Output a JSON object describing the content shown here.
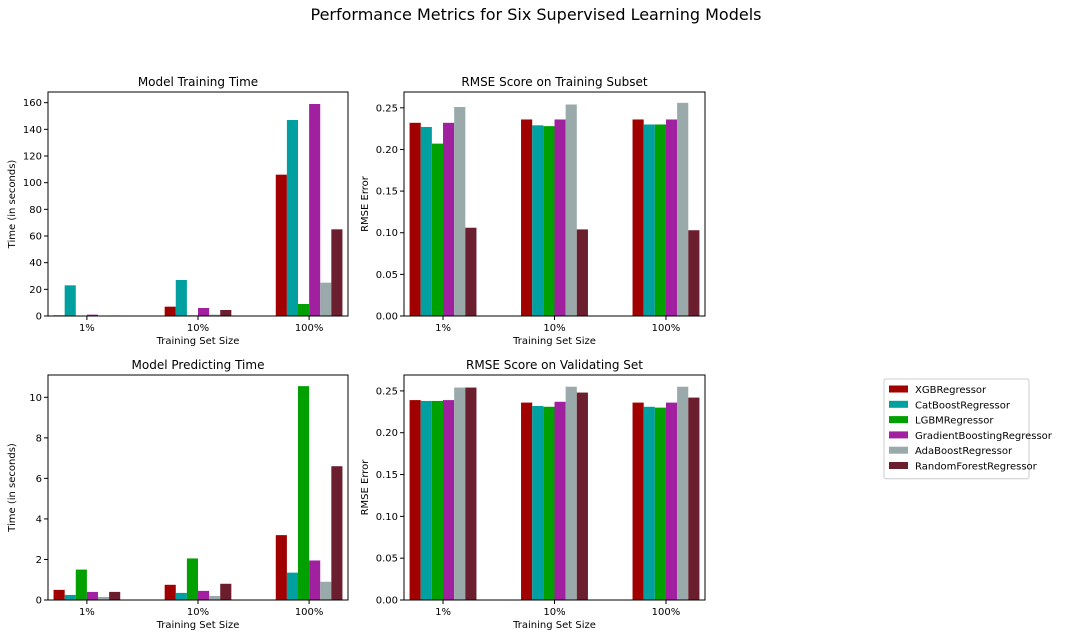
{
  "figure": {
    "title": "Performance Metrics for Six Supervised Learning Models"
  },
  "legend": {
    "placement": "right",
    "entries": [
      {
        "name": "XGBRegressor",
        "color": "#a00000"
      },
      {
        "name": "CatBoostRegressor",
        "color": "#00a0a0"
      },
      {
        "name": "LGBMRegressor",
        "color": "#00a000"
      },
      {
        "name": "GradientBoostingRegressor",
        "color": "#a020a0"
      },
      {
        "name": "AdaBoostRegressor",
        "color": "#9aa9a9"
      },
      {
        "name": "RandomForestRegressor",
        "color": "#6b1f2e"
      }
    ]
  },
  "chart_data": [
    {
      "type": "bar",
      "title": "Model Training Time",
      "xlabel": "Training Set Size",
      "ylabel": "Time (in seconds)",
      "categories": [
        "1%",
        "10%",
        "100%"
      ],
      "ylim": [
        0,
        168
      ],
      "yticks": [
        0,
        20,
        40,
        60,
        80,
        100,
        120,
        140,
        160
      ],
      "ytick_labels": [
        "0",
        "20",
        "40",
        "60",
        "80",
        "100",
        "120",
        "140",
        "160"
      ],
      "series": [
        {
          "name": "XGBRegressor",
          "values": [
            0.5,
            7,
            106
          ]
        },
        {
          "name": "CatBoostRegressor",
          "values": [
            23,
            27,
            147
          ]
        },
        {
          "name": "LGBMRegressor",
          "values": [
            0.2,
            0.5,
            9
          ]
        },
        {
          "name": "GradientBoostingRegressor",
          "values": [
            1,
            6,
            159
          ]
        },
        {
          "name": "AdaBoostRegressor",
          "values": [
            0.3,
            1,
            25
          ]
        },
        {
          "name": "RandomForestRegressor",
          "values": [
            0.4,
            4.5,
            65
          ]
        }
      ]
    },
    {
      "type": "bar",
      "title": "RMSE Score on Training Subset",
      "xlabel": "Training Set Size",
      "ylabel": "RMSE Error",
      "categories": [
        "1%",
        "10%",
        "100%"
      ],
      "ylim": [
        0,
        0.269
      ],
      "yticks": [
        0,
        0.05,
        0.1,
        0.15,
        0.2,
        0.25
      ],
      "ytick_labels": [
        "0.00",
        "0.05",
        "0.10",
        "0.15",
        "0.20",
        "0.25"
      ],
      "series": [
        {
          "name": "XGBRegressor",
          "values": [
            0.232,
            0.236,
            0.236
          ]
        },
        {
          "name": "CatBoostRegressor",
          "values": [
            0.227,
            0.229,
            0.23
          ]
        },
        {
          "name": "LGBMRegressor",
          "values": [
            0.207,
            0.228,
            0.23
          ]
        },
        {
          "name": "GradientBoostingRegressor",
          "values": [
            0.232,
            0.236,
            0.236
          ]
        },
        {
          "name": "AdaBoostRegressor",
          "values": [
            0.251,
            0.254,
            0.256
          ]
        },
        {
          "name": "RandomForestRegressor",
          "values": [
            0.106,
            0.104,
            0.103
          ]
        }
      ]
    },
    {
      "type": "bar",
      "title": "Model Predicting Time",
      "xlabel": "Training Set Size",
      "ylabel": "Time (in seconds)",
      "categories": [
        "1%",
        "10%",
        "100%"
      ],
      "ylim": [
        0,
        11.1
      ],
      "yticks": [
        0,
        2,
        4,
        6,
        8,
        10
      ],
      "ytick_labels": [
        "0",
        "2",
        "4",
        "6",
        "8",
        "10"
      ],
      "series": [
        {
          "name": "XGBRegressor",
          "values": [
            0.5,
            0.75,
            3.2
          ]
        },
        {
          "name": "CatBoostRegressor",
          "values": [
            0.25,
            0.35,
            1.35
          ]
        },
        {
          "name": "LGBMRegressor",
          "values": [
            1.5,
            2.05,
            10.55
          ]
        },
        {
          "name": "GradientBoostingRegressor",
          "values": [
            0.4,
            0.45,
            1.95
          ]
        },
        {
          "name": "AdaBoostRegressor",
          "values": [
            0.15,
            0.2,
            0.9
          ]
        },
        {
          "name": "RandomForestRegressor",
          "values": [
            0.4,
            0.8,
            6.6
          ]
        }
      ]
    },
    {
      "type": "bar",
      "title": "RMSE Score on Validating Set",
      "xlabel": "Training Set Size",
      "ylabel": "RMSE Error",
      "categories": [
        "1%",
        "10%",
        "100%"
      ],
      "ylim": [
        0,
        0.269
      ],
      "yticks": [
        0,
        0.05,
        0.1,
        0.15,
        0.2,
        0.25
      ],
      "ytick_labels": [
        "0.00",
        "0.05",
        "0.10",
        "0.15",
        "0.20",
        "0.25"
      ],
      "series": [
        {
          "name": "XGBRegressor",
          "values": [
            0.239,
            0.236,
            0.236
          ]
        },
        {
          "name": "CatBoostRegressor",
          "values": [
            0.238,
            0.232,
            0.231
          ]
        },
        {
          "name": "LGBMRegressor",
          "values": [
            0.238,
            0.231,
            0.23
          ]
        },
        {
          "name": "GradientBoostingRegressor",
          "values": [
            0.239,
            0.237,
            0.236
          ]
        },
        {
          "name": "AdaBoostRegressor",
          "values": [
            0.254,
            0.255,
            0.255
          ]
        },
        {
          "name": "RandomForestRegressor",
          "values": [
            0.254,
            0.248,
            0.242
          ]
        }
      ]
    }
  ]
}
